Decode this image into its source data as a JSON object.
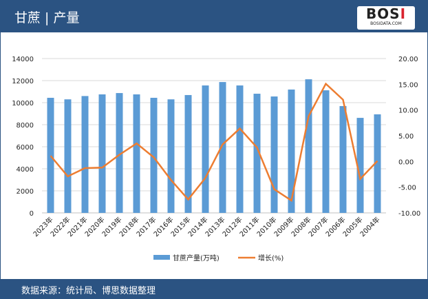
{
  "header": {
    "title": "甘蔗 | 产量",
    "logo_text": "BOSI",
    "logo_sub": "BOSIDATA.COM"
  },
  "footer": {
    "source": "数据来源：统计局、博思数据整理"
  },
  "colors": {
    "header": "#2b5382",
    "bar": "#5b9bd5",
    "line": "#ed7d31"
  },
  "chart_data": {
    "type": "bar+line",
    "categories": [
      "2023年",
      "2022年",
      "2021年",
      "2020年",
      "2019年",
      "2018年",
      "2017年",
      "2016年",
      "2015年",
      "2014年",
      "2013年",
      "2012年",
      "2011年",
      "2010年",
      "2009年",
      "2008年",
      "2007年",
      "2006年",
      "2005年",
      "2004年"
    ],
    "series": [
      {
        "name": "甘蔗产量(万吨)",
        "type": "bar",
        "axis": "left",
        "values": [
          10440,
          10300,
          10600,
          10750,
          10870,
          10750,
          10440,
          10300,
          10690,
          11560,
          11870,
          11560,
          10810,
          10560,
          11190,
          12120,
          11120,
          9690,
          8620,
          8940
        ]
      },
      {
        "name": "增长(%)",
        "type": "line",
        "axis": "right",
        "values": [
          1.1,
          -2.9,
          -1.3,
          -1.2,
          1.3,
          3.5,
          0.8,
          -3.6,
          -7.4,
          -3.2,
          3.3,
          6.4,
          2.7,
          -5.4,
          -7.6,
          8.8,
          15.1,
          12.0,
          -3.4,
          0.1
        ]
      }
    ],
    "ylim_left": [
      0,
      14000
    ],
    "yticks_left": [
      "0",
      "2000",
      "4000",
      "6000",
      "8000",
      "10000",
      "12000",
      "14000"
    ],
    "ylim_right": [
      -10,
      20
    ],
    "yticks_right": [
      "-10.00",
      "-5.00",
      "0.00",
      "5.00",
      "10.00",
      "15.00",
      "20.00"
    ],
    "grid": true,
    "legend": "bottom"
  }
}
